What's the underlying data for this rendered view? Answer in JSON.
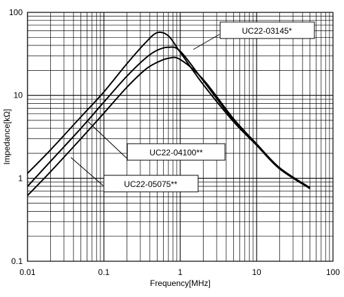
{
  "chart_data": {
    "type": "line",
    "title": "",
    "xlabel": "Frequency[MHz]",
    "ylabel": "Impedance[kΩ]",
    "x_scale": "log",
    "y_scale": "log",
    "xlim": [
      0.01,
      100
    ],
    "ylim": [
      0.1,
      100
    ],
    "grid": true,
    "x_ticks": [
      {
        "value": 0.01,
        "label": "0.01"
      },
      {
        "value": 0.1,
        "label": "0.1"
      },
      {
        "value": 1,
        "label": "1"
      },
      {
        "value": 10,
        "label": "10"
      },
      {
        "value": 100,
        "label": "100"
      }
    ],
    "y_ticks": [
      {
        "value": 0.1,
        "label": "0.1"
      },
      {
        "value": 1,
        "label": "1"
      },
      {
        "value": 10,
        "label": "10"
      },
      {
        "value": 100,
        "label": "100"
      }
    ],
    "series": [
      {
        "name": "UC22-03145*",
        "x": [
          0.01,
          0.02,
          0.05,
          0.1,
          0.2,
          0.35,
          0.5,
          0.7,
          1.0,
          2.0,
          5.0,
          10,
          20,
          50
        ],
        "y": [
          1.15,
          2.2,
          5.5,
          11,
          24,
          43,
          57,
          52,
          33,
          13.5,
          4.8,
          2.5,
          1.3,
          0.75
        ]
      },
      {
        "name": "UC22-04100**",
        "x": [
          0.01,
          0.02,
          0.05,
          0.1,
          0.2,
          0.35,
          0.5,
          0.7,
          1.0,
          2.0,
          5.0,
          10,
          20,
          50
        ],
        "y": [
          0.8,
          1.6,
          4.0,
          8.3,
          17,
          28,
          35,
          38,
          34,
          15,
          5.0,
          2.55,
          1.32,
          0.76
        ]
      },
      {
        "name": "UC22-05075**",
        "x": [
          0.01,
          0.02,
          0.05,
          0.1,
          0.2,
          0.35,
          0.5,
          0.7,
          1.0,
          2.0,
          5.0,
          10,
          20,
          50
        ],
        "y": [
          0.62,
          1.2,
          3.0,
          6.1,
          12.5,
          20.5,
          25,
          28,
          27,
          15.5,
          5.2,
          2.6,
          1.34,
          0.77
        ]
      }
    ],
    "annotations": [
      {
        "text": "UC22-03145*"
      },
      {
        "text": "UC22-04100**"
      },
      {
        "text": "UC22-05075**"
      }
    ]
  }
}
